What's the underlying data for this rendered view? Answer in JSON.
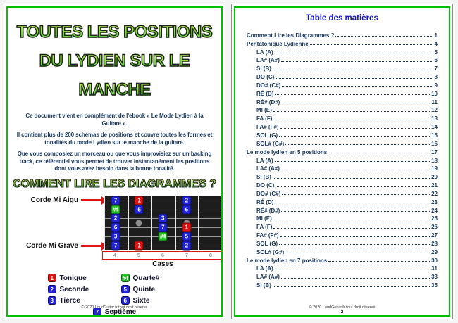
{
  "colors": {
    "frame_green": "#00c000",
    "note_blue": "#2023d8",
    "note_red": "#e11212",
    "note_green": "#1ec41e",
    "toc_title_blue": "#1414c8",
    "body_navy": "#17375e",
    "title_gradient_top": "#eefc74",
    "title_gradient_bottom": "#0fa53a"
  },
  "page1": {
    "title_lines": [
      "TOUTES LES POSITIONS",
      "DU LYDIEN SUR LE",
      "MANCHE"
    ],
    "paragraphs": [
      "Ce document vient en complément de l'ebook « Le Mode Lydien à la Guitare ».",
      "Il contient plus de 200 schémas de positions et couvre toutes les formes et tonalités du mode Lydien sur le manche de la guitare.",
      "Que vous composiez un morceau ou que vous improvisiez sur un backing track, ce référentiel vous permet de trouver instantanément les positions dont vous avez besoin dans la bonne tonalité."
    ],
    "section_heading": "COMMENT LIRE LES DIAGRAMMES ?",
    "diagram": {
      "label_high_string": "Corde Mi Aigu",
      "label_low_string": "Corde Mi Grave",
      "cases_label": "Cases",
      "fret_numbers": [
        "4",
        "5",
        "6",
        "7",
        "8"
      ],
      "first_fret": 4,
      "strings_count": 6,
      "inlays": [
        {
          "fret": 5
        },
        {
          "fret": 7
        }
      ],
      "notes": [
        {
          "string": 1,
          "fret": 4,
          "degree": "7",
          "type": "blue"
        },
        {
          "string": 1,
          "fret": 5,
          "degree": "1",
          "type": "red"
        },
        {
          "string": 1,
          "fret": 7,
          "degree": "2",
          "type": "blue"
        },
        {
          "string": 2,
          "fret": 4,
          "degree": "#4",
          "type": "green"
        },
        {
          "string": 2,
          "fret": 5,
          "degree": "5",
          "type": "blue"
        },
        {
          "string": 2,
          "fret": 7,
          "degree": "6",
          "type": "blue"
        },
        {
          "string": 3,
          "fret": 4,
          "degree": "2",
          "type": "blue"
        },
        {
          "string": 3,
          "fret": 6,
          "degree": "3",
          "type": "blue"
        },
        {
          "string": 4,
          "fret": 4,
          "degree": "6",
          "type": "blue"
        },
        {
          "string": 4,
          "fret": 6,
          "degree": "7",
          "type": "blue"
        },
        {
          "string": 4,
          "fret": 7,
          "degree": "1",
          "type": "red"
        },
        {
          "string": 5,
          "fret": 4,
          "degree": "3",
          "type": "blue"
        },
        {
          "string": 5,
          "fret": 6,
          "degree": "#4",
          "type": "green"
        },
        {
          "string": 5,
          "fret": 7,
          "degree": "5",
          "type": "blue"
        },
        {
          "string": 6,
          "fret": 4,
          "degree": "7",
          "type": "blue"
        },
        {
          "string": 6,
          "fret": 5,
          "degree": "1",
          "type": "red"
        },
        {
          "string": 6,
          "fret": 7,
          "degree": "2",
          "type": "blue"
        }
      ]
    },
    "legend": {
      "items": [
        {
          "degree": "1",
          "type": "red",
          "label": "Tonique"
        },
        {
          "degree": "#4",
          "type": "green",
          "label": "Quarte#"
        },
        {
          "degree": "2",
          "type": "blue",
          "label": "Seconde"
        },
        {
          "degree": "5",
          "type": "blue",
          "label": "Quinte"
        },
        {
          "degree": "3",
          "type": "blue",
          "label": "Tierce"
        },
        {
          "degree": "6",
          "type": "blue",
          "label": "Sixte"
        }
      ],
      "center_item": {
        "degree": "7",
        "type": "blue",
        "label": "Septième"
      }
    },
    "footer": {
      "copyright": "© 2020 LoudGuitar.fr tout droit réservé",
      "page_number": "1"
    }
  },
  "page2": {
    "title": "Table des matières",
    "toc": [
      {
        "label": "Comment Lire les Diagrammes ?",
        "page": "1",
        "level": 0
      },
      {
        "label": "Pentatonique Lydienne",
        "page": "4",
        "level": 0
      },
      {
        "label": "LA (A)",
        "page": "5",
        "level": 1
      },
      {
        "label": "LA# (A#)",
        "page": "6",
        "level": 1
      },
      {
        "label": "SI (B)",
        "page": "7",
        "level": 1
      },
      {
        "label": "DO (C)",
        "page": "8",
        "level": 1
      },
      {
        "label": "DO# (C#)",
        "page": "9",
        "level": 1
      },
      {
        "label": "RÉ (D)",
        "page": "10",
        "level": 1
      },
      {
        "label": "RÉ# (D#)",
        "page": "11",
        "level": 1
      },
      {
        "label": "MI (E)",
        "page": "12",
        "level": 1
      },
      {
        "label": "FA (F)",
        "page": "13",
        "level": 1
      },
      {
        "label": "FA# (F#)",
        "page": "14",
        "level": 1
      },
      {
        "label": "SOL (G)",
        "page": "15",
        "level": 1
      },
      {
        "label": "SOL# (G#)",
        "page": "16",
        "level": 1
      },
      {
        "label": "Le mode lydien en 5 positions",
        "page": "17",
        "level": 0
      },
      {
        "label": "LA (A)",
        "page": "18",
        "level": 1
      },
      {
        "label": "LA# (A#)",
        "page": "19",
        "level": 1
      },
      {
        "label": "SI (B)",
        "page": "20",
        "level": 1
      },
      {
        "label": "DO (C)",
        "page": "21",
        "level": 1
      },
      {
        "label": "DO# (C#)",
        "page": "22",
        "level": 1
      },
      {
        "label": "RÉ (D)",
        "page": "23",
        "level": 1
      },
      {
        "label": "RÉ# (D#)",
        "page": "24",
        "level": 1
      },
      {
        "label": "MI (E)",
        "page": "25",
        "level": 1
      },
      {
        "label": "FA (F)",
        "page": "26",
        "level": 1
      },
      {
        "label": "FA# (F#)",
        "page": "27",
        "level": 1
      },
      {
        "label": "SOL (G)",
        "page": "28",
        "level": 1
      },
      {
        "label": "SOL# (G#)",
        "page": "29",
        "level": 1
      },
      {
        "label": "Le mode lydien en 7 positions",
        "page": "30",
        "level": 0
      },
      {
        "label": "LA (A)",
        "page": "31",
        "level": 1
      },
      {
        "label": "LA# (A#)",
        "page": "33",
        "level": 1
      },
      {
        "label": "SI (B)",
        "page": "35",
        "level": 1
      }
    ],
    "footer": {
      "copyright": "© 2020 LoudGuitar.fr tout droit réservé",
      "page_number": "2"
    }
  }
}
